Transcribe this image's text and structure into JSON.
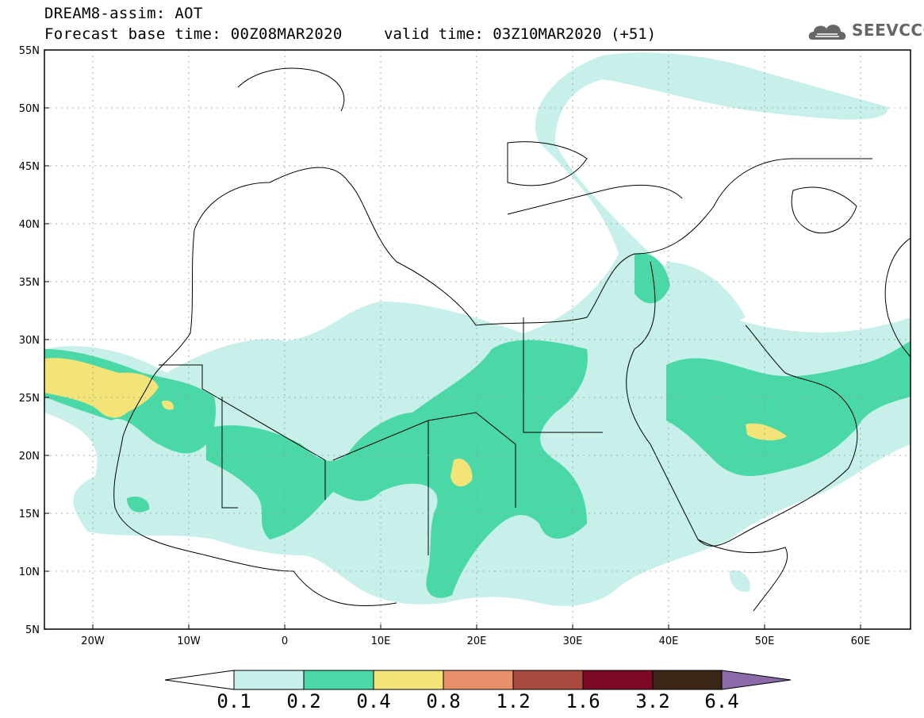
{
  "header": {
    "line1": "DREAM8-assim: AOT",
    "line2": "Forecast base time: 00Z08MAR2020",
    "line2b": "valid time: 03Z10MAR2020 (+51)",
    "logo_text": "SEEVCCC"
  },
  "lat_labels": [
    "55N",
    "50N",
    "45N",
    "40N",
    "35N",
    "30N",
    "25N",
    "20N",
    "15N",
    "10N",
    "5N"
  ],
  "lon_labels": [
    "20W",
    "10W",
    "0",
    "10E",
    "20E",
    "30E",
    "40E",
    "50E",
    "60E"
  ],
  "colorbar": {
    "labels": [
      "0.1",
      "0.2",
      "0.4",
      "0.8",
      "1.2",
      "1.6",
      "3.2",
      "6.4"
    ],
    "colors": [
      "#c8f0ea",
      "#4ad8a6",
      "#f2e478",
      "#e8906a",
      "#a84a3e",
      "#7c0a26",
      "#3a2616",
      "#8a6aa8"
    ]
  },
  "legend_colors": {
    "band_01_02": "#c8f0ea",
    "band_02_04": "#4ad8a6",
    "band_04_08": "#f2e478"
  },
  "icons": [
    "cloud-logo-icon"
  ]
}
